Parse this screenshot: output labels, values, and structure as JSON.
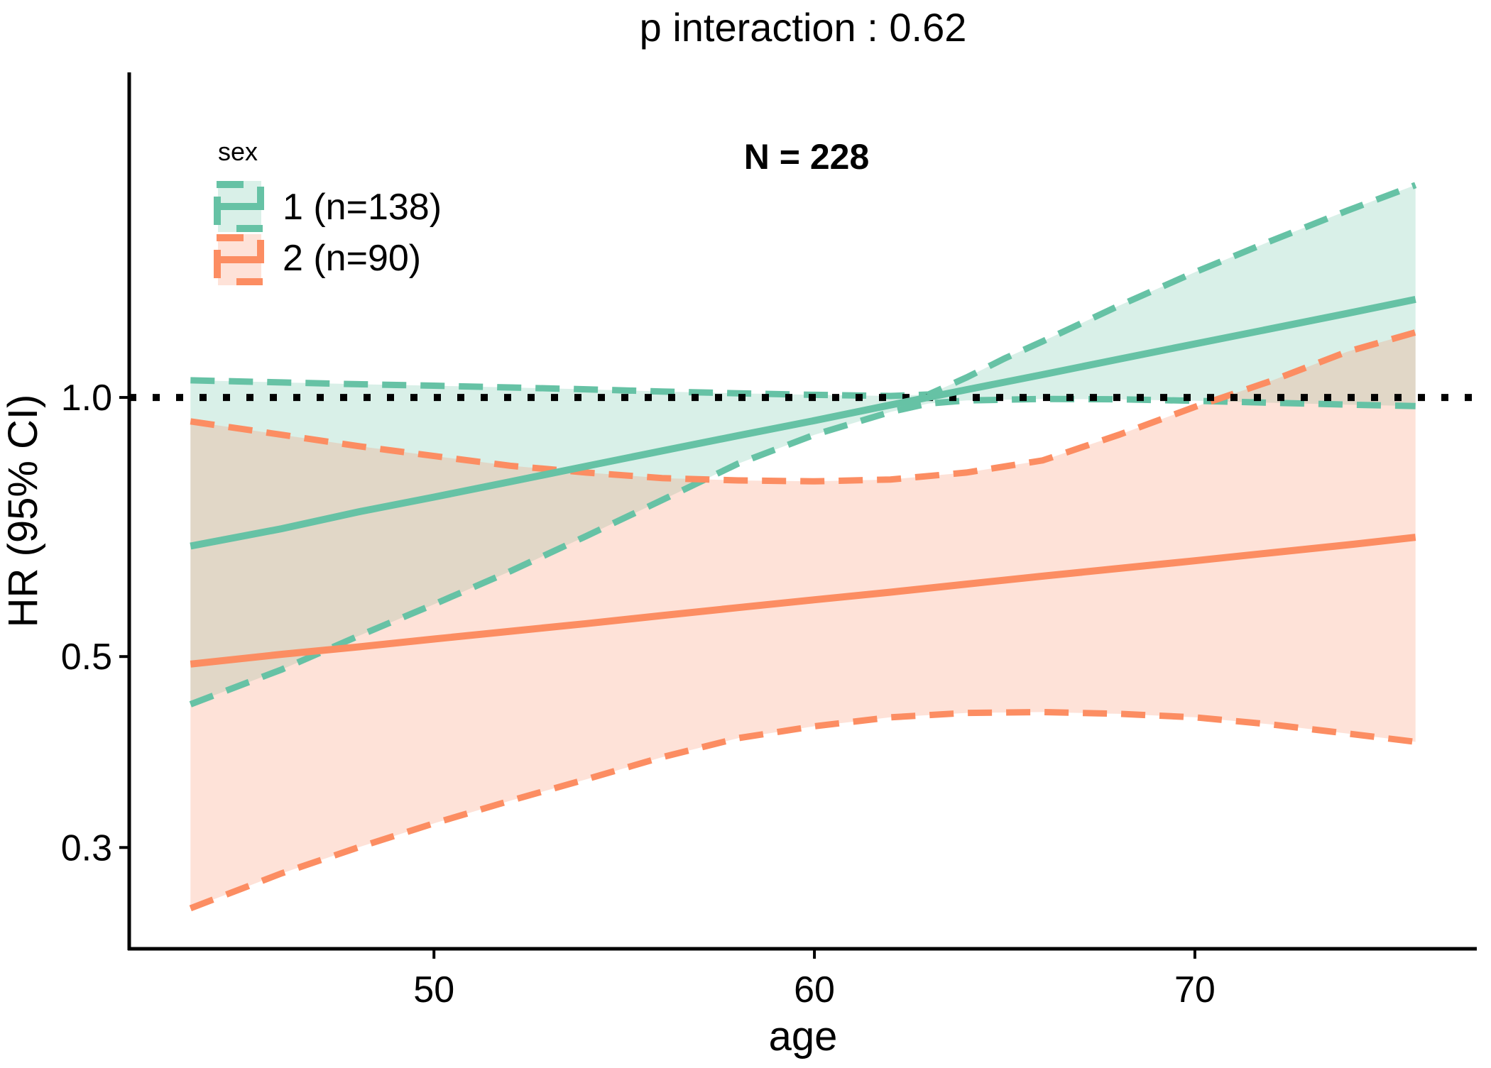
{
  "title": "p interaction : 0.62",
  "annotation": "N = 228",
  "axes": {
    "x": {
      "label": "age",
      "tick_labels": [
        "50",
        "60",
        "70"
      ],
      "tick_values": [
        50,
        60,
        70
      ],
      "domain": [
        41.99,
        77.41
      ]
    },
    "y": {
      "label": "HR (95% CI)",
      "tick_labels": [
        "1.0",
        "0.5",
        "0.3"
      ],
      "tick_values": [
        1.0,
        0.5,
        0.3
      ],
      "scale": "log10",
      "domain": [
        0.2288,
        2.386
      ]
    }
  },
  "ref_line": {
    "value": 1.0,
    "style": "dotted",
    "color": "#000000"
  },
  "legend": {
    "title": "sex",
    "items": [
      {
        "label": "1 (n=138)",
        "color": "#66C2A5"
      },
      {
        "label": "2 (n=90)",
        "color": "#FC8D62"
      }
    ]
  },
  "colors": {
    "sex1": "#66C2A5",
    "sex2": "#FC8D62",
    "ribbon_opacity": 0.25,
    "axis": "#000000",
    "background": "#ffffff"
  },
  "chart_data": {
    "type": "line",
    "title": "p interaction : 0.62",
    "subtitle": "N = 228",
    "xlabel": "age",
    "ylabel": "HR (95% CI)",
    "x_range": [
      43.6,
      75.8
    ],
    "y_scale": "log10",
    "y_ticks": [
      1.0,
      0.5,
      0.3
    ],
    "ref_line_y": 1.0,
    "legend_position": "top-left-inside",
    "series": [
      {
        "name": "1 (n=138)",
        "group": "sex 1",
        "color": "#66C2A5",
        "mean_style": "solid",
        "ci_border_style": "dashed",
        "mean": [
          [
            43.6,
            0.672
          ],
          [
            46,
            0.704
          ],
          [
            48,
            0.736
          ],
          [
            50,
            0.766
          ],
          [
            52,
            0.798
          ],
          [
            54,
            0.832
          ],
          [
            56,
            0.867
          ],
          [
            58,
            0.903
          ],
          [
            60,
            0.94
          ],
          [
            62,
            0.98
          ],
          [
            64,
            1.021
          ],
          [
            66,
            1.063
          ],
          [
            68,
            1.108
          ],
          [
            70,
            1.154
          ],
          [
            72,
            1.202
          ],
          [
            74,
            1.252
          ],
          [
            75.8,
            1.3
          ]
        ],
        "upper": [
          [
            43.6,
            1.047
          ],
          [
            46,
            1.041
          ],
          [
            48,
            1.036
          ],
          [
            50,
            1.032
          ],
          [
            52,
            1.027
          ],
          [
            54,
            1.022
          ],
          [
            56,
            1.016
          ],
          [
            58,
            1.011
          ],
          [
            60,
            1.007
          ],
          [
            62,
            1.004
          ],
          [
            63,
            1.008
          ],
          [
            64,
            1.055
          ],
          [
            65,
            1.11
          ],
          [
            66,
            1.162
          ],
          [
            68,
            1.278
          ],
          [
            70,
            1.398
          ],
          [
            72,
            1.52
          ],
          [
            74,
            1.648
          ],
          [
            75.8,
            1.765
          ]
        ],
        "lower": [
          [
            43.6,
            0.44
          ],
          [
            46,
            0.483
          ],
          [
            48,
            0.528
          ],
          [
            50,
            0.575
          ],
          [
            52,
            0.628
          ],
          [
            54,
            0.69
          ],
          [
            56,
            0.76
          ],
          [
            58,
            0.838
          ],
          [
            60,
            0.905
          ],
          [
            62,
            0.962
          ],
          [
            63,
            0.984
          ],
          [
            64,
            0.992
          ],
          [
            66,
            0.996
          ],
          [
            68,
            0.995
          ],
          [
            70,
            0.991
          ],
          [
            72,
            0.986
          ],
          [
            74,
            0.981
          ],
          [
            75.8,
            0.977
          ]
        ]
      },
      {
        "name": "2 (n=90)",
        "group": "sex 2",
        "color": "#FC8D62",
        "mean_style": "solid",
        "ci_border_style": "dashed",
        "mean": [
          [
            43.6,
            0.49
          ],
          [
            46,
            0.503
          ],
          [
            48,
            0.513
          ],
          [
            50,
            0.524
          ],
          [
            52,
            0.535
          ],
          [
            54,
            0.546
          ],
          [
            56,
            0.558
          ],
          [
            58,
            0.57
          ],
          [
            60,
            0.582
          ],
          [
            62,
            0.594
          ],
          [
            64,
            0.607
          ],
          [
            66,
            0.62
          ],
          [
            68,
            0.633
          ],
          [
            70,
            0.646
          ],
          [
            72,
            0.66
          ],
          [
            74,
            0.674
          ],
          [
            75.8,
            0.688
          ]
        ],
        "upper": [
          [
            43.6,
            0.938
          ],
          [
            46,
            0.905
          ],
          [
            48,
            0.878
          ],
          [
            50,
            0.855
          ],
          [
            52,
            0.833
          ],
          [
            54,
            0.818
          ],
          [
            56,
            0.806
          ],
          [
            58,
            0.801
          ],
          [
            60,
            0.799
          ],
          [
            62,
            0.803
          ],
          [
            64,
            0.818
          ],
          [
            66,
            0.845
          ],
          [
            68,
            0.905
          ],
          [
            70,
            0.975
          ],
          [
            72,
            1.045
          ],
          [
            74,
            1.13
          ],
          [
            75.8,
            1.19
          ]
        ],
        "lower": [
          [
            43.6,
            0.255
          ],
          [
            46,
            0.28
          ],
          [
            48,
            0.3
          ],
          [
            50,
            0.32
          ],
          [
            52,
            0.34
          ],
          [
            54,
            0.36
          ],
          [
            56,
            0.382
          ],
          [
            58,
            0.402
          ],
          [
            60,
            0.415
          ],
          [
            62,
            0.425
          ],
          [
            64,
            0.43
          ],
          [
            66,
            0.431
          ],
          [
            68,
            0.429
          ],
          [
            70,
            0.425
          ],
          [
            72,
            0.417
          ],
          [
            74,
            0.407
          ],
          [
            75.8,
            0.398
          ]
        ]
      }
    ]
  }
}
